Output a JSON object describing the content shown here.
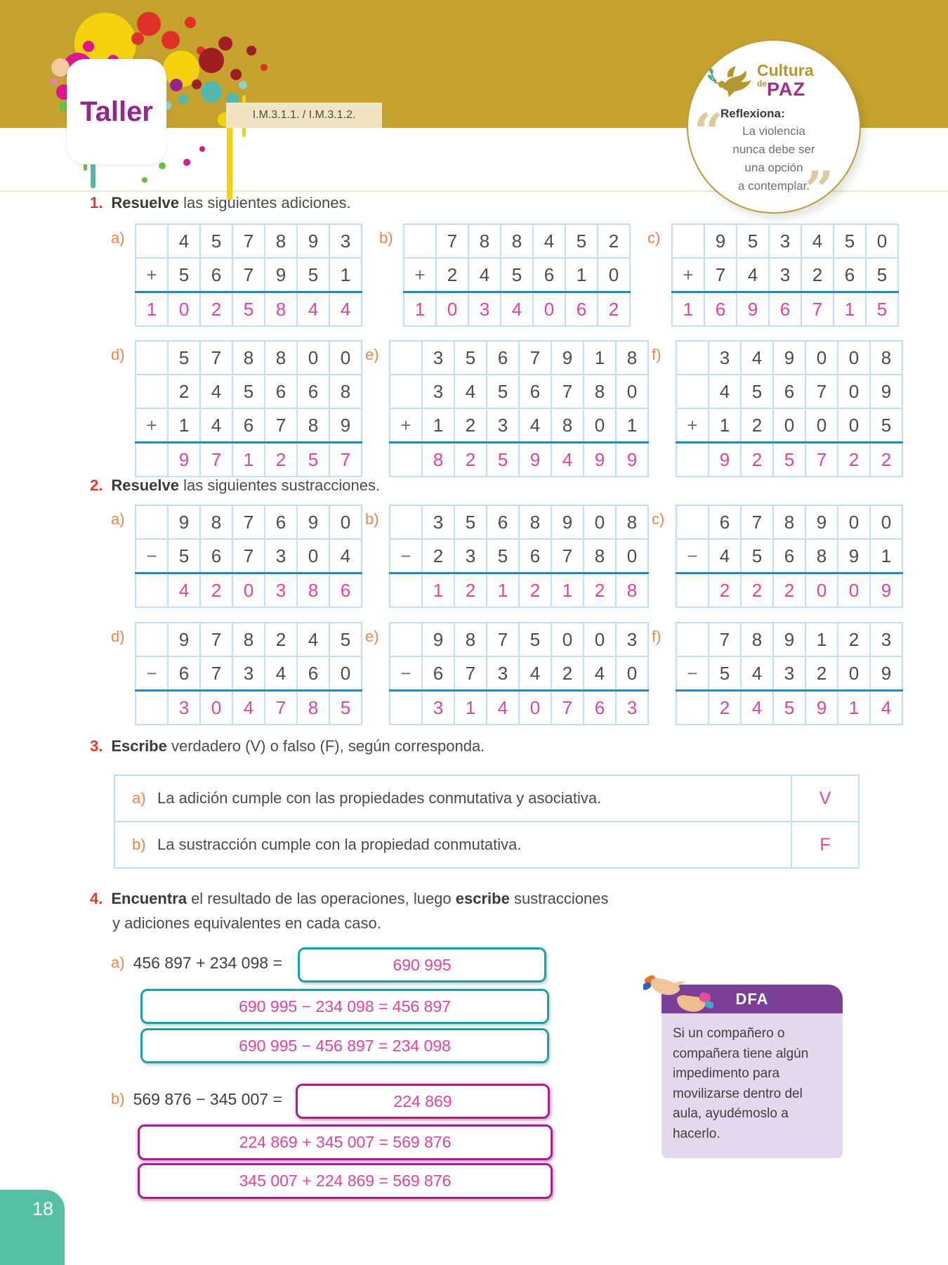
{
  "header": {
    "title": "Taller",
    "standards": "I.M.3.1.1.  /  I.M.3.1.2.",
    "badge": {
      "logo_top": "Cultura",
      "logo_de": "de",
      "logo_paz": "PAZ",
      "reflexiona": "Reflexiona:",
      "quote_lines": [
        "La violencia",
        "nunca debe ser",
        "una opción",
        "a contemplar."
      ],
      "open_quote": "“",
      "close_quote": "”"
    }
  },
  "exercise1": {
    "number": "1.",
    "bold": "Resuelve",
    "rest": " las siguientes adiciones.",
    "tables": [
      {
        "label": "a)",
        "rows": [
          [
            "",
            "4",
            "5",
            "7",
            "8",
            "9",
            "3"
          ],
          [
            "+",
            "5",
            "6",
            "7",
            "9",
            "5",
            "1"
          ]
        ],
        "result": [
          "1",
          "0",
          "2",
          "5",
          "8",
          "4",
          "4"
        ]
      },
      {
        "label": "b)",
        "rows": [
          [
            "",
            "7",
            "8",
            "8",
            "4",
            "5",
            "2"
          ],
          [
            "+",
            "2",
            "4",
            "5",
            "6",
            "1",
            "0"
          ]
        ],
        "result": [
          "1",
          "0",
          "3",
          "4",
          "0",
          "6",
          "2"
        ]
      },
      {
        "label": "c)",
        "rows": [
          [
            "",
            "9",
            "5",
            "3",
            "4",
            "5",
            "0"
          ],
          [
            "+",
            "7",
            "4",
            "3",
            "2",
            "6",
            "5"
          ]
        ],
        "result": [
          "1",
          "6",
          "9",
          "6",
          "7",
          "1",
          "5"
        ]
      },
      {
        "label": "d)",
        "rows": [
          [
            "",
            "5",
            "7",
            "8",
            "8",
            "0",
            "0"
          ],
          [
            "",
            "2",
            "4",
            "5",
            "6",
            "6",
            "8"
          ],
          [
            "+",
            "1",
            "4",
            "6",
            "7",
            "8",
            "9"
          ]
        ],
        "result": [
          "",
          "9",
          "7",
          "1",
          "2",
          "5",
          "7"
        ]
      },
      {
        "label": "e)",
        "rows": [
          [
            "",
            "3",
            "5",
            "6",
            "7",
            "9",
            "1",
            "8"
          ],
          [
            "",
            "3",
            "4",
            "5",
            "6",
            "7",
            "8",
            "0"
          ],
          [
            "+",
            "1",
            "2",
            "3",
            "4",
            "8",
            "0",
            "1"
          ]
        ],
        "result": [
          "",
          "8",
          "2",
          "5",
          "9",
          "4",
          "9",
          "9"
        ]
      },
      {
        "label": "f)",
        "rows": [
          [
            "",
            "3",
            "4",
            "9",
            "0",
            "0",
            "8"
          ],
          [
            "",
            "4",
            "5",
            "6",
            "7",
            "0",
            "9"
          ],
          [
            "+",
            "1",
            "2",
            "0",
            "0",
            "0",
            "5"
          ]
        ],
        "result": [
          "",
          "9",
          "2",
          "5",
          "7",
          "2",
          "2"
        ]
      }
    ]
  },
  "exercise2": {
    "number": "2.",
    "bold": "Resuelve",
    "rest": " las siguientes sustracciones.",
    "tables": [
      {
        "label": "a)",
        "rows": [
          [
            "",
            "9",
            "8",
            "7",
            "6",
            "9",
            "0"
          ],
          [
            "−",
            "5",
            "6",
            "7",
            "3",
            "0",
            "4"
          ]
        ],
        "result": [
          "",
          "4",
          "2",
          "0",
          "3",
          "8",
          "6"
        ]
      },
      {
        "label": "b)",
        "rows": [
          [
            "",
            "3",
            "5",
            "6",
            "8",
            "9",
            "0",
            "8"
          ],
          [
            "−",
            "2",
            "3",
            "5",
            "6",
            "7",
            "8",
            "0"
          ]
        ],
        "result": [
          "",
          "1",
          "2",
          "1",
          "2",
          "1",
          "2",
          "8"
        ]
      },
      {
        "label": "c)",
        "rows": [
          [
            "",
            "6",
            "7",
            "8",
            "9",
            "0",
            "0"
          ],
          [
            "−",
            "4",
            "5",
            "6",
            "8",
            "9",
            "1"
          ]
        ],
        "result": [
          "",
          "2",
          "2",
          "2",
          "0",
          "0",
          "9"
        ]
      },
      {
        "label": "d)",
        "rows": [
          [
            "",
            "9",
            "7",
            "8",
            "2",
            "4",
            "5"
          ],
          [
            "−",
            "6",
            "7",
            "3",
            "4",
            "6",
            "0"
          ]
        ],
        "result": [
          "",
          "3",
          "0",
          "4",
          "7",
          "8",
          "5"
        ]
      },
      {
        "label": "e)",
        "rows": [
          [
            "",
            "9",
            "8",
            "7",
            "5",
            "0",
            "0",
            "3"
          ],
          [
            "−",
            "6",
            "7",
            "3",
            "4",
            "2",
            "4",
            "0"
          ]
        ],
        "result": [
          "",
          "3",
          "1",
          "4",
          "0",
          "7",
          "6",
          "3"
        ]
      },
      {
        "label": "f)",
        "rows": [
          [
            "",
            "7",
            "8",
            "9",
            "1",
            "2",
            "3"
          ],
          [
            "−",
            "5",
            "4",
            "3",
            "2",
            "0",
            "9"
          ]
        ],
        "result": [
          "",
          "2",
          "4",
          "5",
          "9",
          "1",
          "4"
        ]
      }
    ]
  },
  "exercise3": {
    "number": "3.",
    "bold": "Escribe",
    "rest": " verdadero (V) o falso (F), según corresponda.",
    "items": [
      {
        "label": "a)",
        "text": "La adición cumple con las propiedades conmutativa y asociativa.",
        "answer": "V"
      },
      {
        "label": "b)",
        "text": "La sustracción cumple con la propiedad conmutativa.",
        "answer": "F"
      }
    ]
  },
  "exercise4": {
    "number": "4.",
    "bold1": "Encuentra",
    "mid": " el resultado de las operaciones, luego ",
    "bold2": "escribe",
    "tail": " sustracciones",
    "line2": "y adiciones equivalentes en cada caso.",
    "items": [
      {
        "label": "a)",
        "expression": "456 897 + 234 098 =",
        "answer": "690 995",
        "equivalents": [
          "690 995 − 234 098 = 456 897",
          "690 995 − 456 897 = 234 098"
        ]
      },
      {
        "label": "b)",
        "expression": "569 876 − 345 007 =",
        "answer": "224 869",
        "equivalents": [
          "224 869 + 345 007 = 569 876",
          "345 007 + 224 869 = 569 876"
        ]
      }
    ]
  },
  "dfa": {
    "title": "DFA",
    "text": "Si un compañero o compañera tiene algún impedimento para movilizarse dentro del aula, ayudémoslo a hacerlo."
  },
  "page_number": "18",
  "colors": {
    "gold_band": "#C5A12D",
    "answer_pink": "#E8439C",
    "title_purple": "#93268F",
    "dfa_purple": "#7C3F97",
    "teal_box": "#1E9FA8",
    "magenta_box": "#A6218C",
    "table_border": "#C2E0F2",
    "table_line": "#1D8BC4",
    "label_orange": "#F0854C",
    "number_red": "#E8392D",
    "page_teal": "#57BFA4"
  }
}
